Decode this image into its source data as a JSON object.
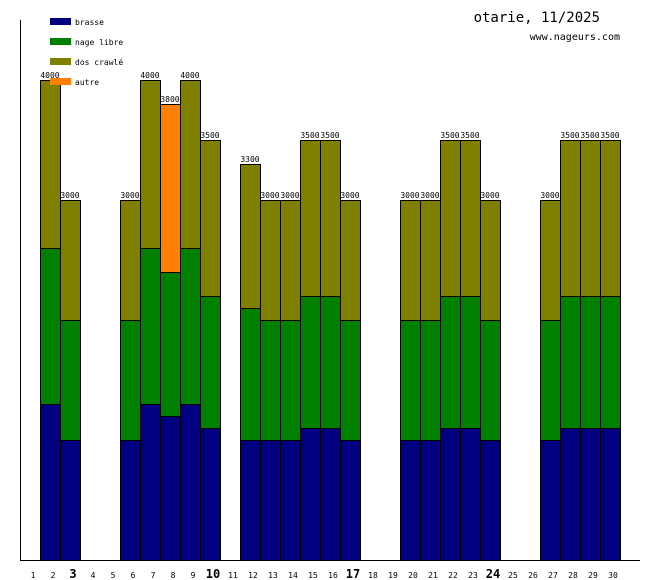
{
  "title": "otarie, 11/2025",
  "site": "www.nageurs.com",
  "chart_data": {
    "type": "bar",
    "stacked": true,
    "title": "otarie, 11/2025",
    "xlabel": "",
    "ylabel": "",
    "ylim": [
      0,
      4000
    ],
    "legend_position": "top-left",
    "categories": [
      "1",
      "2",
      "3",
      "4",
      "5",
      "6",
      "7",
      "8",
      "9",
      "10",
      "11",
      "12",
      "13",
      "14",
      "15",
      "16",
      "17",
      "18",
      "19",
      "20",
      "21",
      "22",
      "23",
      "24",
      "25",
      "26",
      "27",
      "28",
      "29",
      "30"
    ],
    "bold_categories": [
      "3",
      "10",
      "17",
      "24"
    ],
    "series": [
      {
        "name": "brasse",
        "color": "#000080",
        "values": [
          0,
          1300,
          1000,
          0,
          0,
          1000,
          1300,
          1200,
          1300,
          1100,
          0,
          1000,
          1000,
          1000,
          1100,
          1100,
          1000,
          0,
          0,
          1000,
          1000,
          1100,
          1100,
          1000,
          0,
          0,
          1000,
          1100,
          1100,
          1100
        ]
      },
      {
        "name": "nage libre",
        "color": "#008000",
        "values": [
          0,
          1300,
          1000,
          0,
          0,
          1000,
          1300,
          1200,
          1300,
          1100,
          0,
          1100,
          1000,
          1000,
          1100,
          1100,
          1000,
          0,
          0,
          1000,
          1000,
          1100,
          1100,
          1000,
          0,
          0,
          1000,
          1100,
          1100,
          1100
        ]
      },
      {
        "name": "dos crawlé",
        "color": "#808000",
        "values": [
          0,
          1400,
          1000,
          0,
          0,
          1000,
          1400,
          0,
          1400,
          1300,
          0,
          1200,
          1000,
          1000,
          1300,
          1300,
          1000,
          0,
          0,
          1000,
          1000,
          1300,
          1300,
          1000,
          0,
          0,
          1000,
          1300,
          1300,
          1300
        ]
      },
      {
        "name": "autre",
        "color": "#ff8000",
        "values": [
          0,
          0,
          0,
          0,
          0,
          0,
          0,
          1400,
          0,
          0,
          0,
          0,
          0,
          0,
          0,
          0,
          0,
          0,
          0,
          0,
          0,
          0,
          0,
          0,
          0,
          0,
          0,
          0,
          0,
          0
        ]
      }
    ],
    "totals": [
      0,
      4000,
      3000,
      0,
      0,
      3000,
      4000,
      3800,
      4000,
      3500,
      0,
      3300,
      3000,
      3000,
      3500,
      3500,
      3000,
      0,
      0,
      3000,
      3000,
      3500,
      3500,
      3000,
      0,
      0,
      3000,
      3500,
      3500,
      3500
    ]
  }
}
